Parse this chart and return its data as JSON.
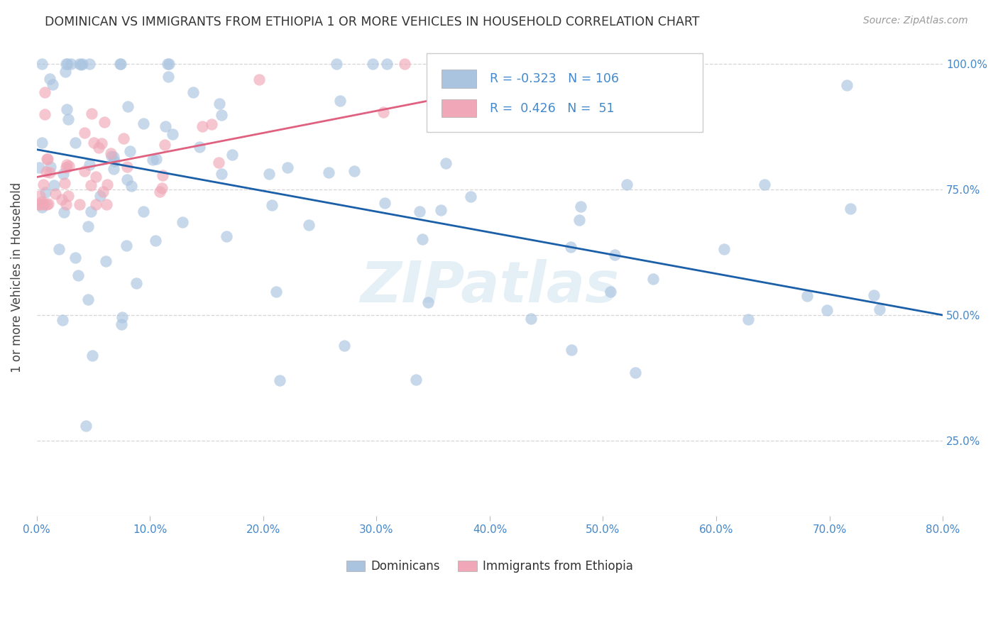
{
  "title": "DOMINICAN VS IMMIGRANTS FROM ETHIOPIA 1 OR MORE VEHICLES IN HOUSEHOLD CORRELATION CHART",
  "source": "Source: ZipAtlas.com",
  "ylabel": "1 or more Vehicles in Household",
  "xmin": 0.0,
  "xmax": 0.8,
  "ymin": 0.1,
  "ymax": 1.05,
  "watermark": "ZIPatlas",
  "legend_labels": [
    "Dominicans",
    "Immigrants from Ethiopia"
  ],
  "R_dominican": -0.323,
  "N_dominican": 106,
  "R_ethiopia": 0.426,
  "N_ethiopia": 51,
  "blue_color": "#aac4e0",
  "pink_color": "#f0a8b8",
  "blue_line_color": "#1a5fa8",
  "pink_line_color": "#e06080",
  "title_color": "#333333",
  "axis_tick_color": "#4488cc",
  "ylabel_color": "#444444",
  "source_color": "#999999",
  "background_color": "#ffffff",
  "grid_color": "#cccccc",
  "blue_line_y0": 0.83,
  "blue_line_y1": 0.5,
  "pink_line_x0": 0.0,
  "pink_line_x1": 0.5,
  "pink_line_y0": 0.775,
  "pink_line_y1": 0.995
}
